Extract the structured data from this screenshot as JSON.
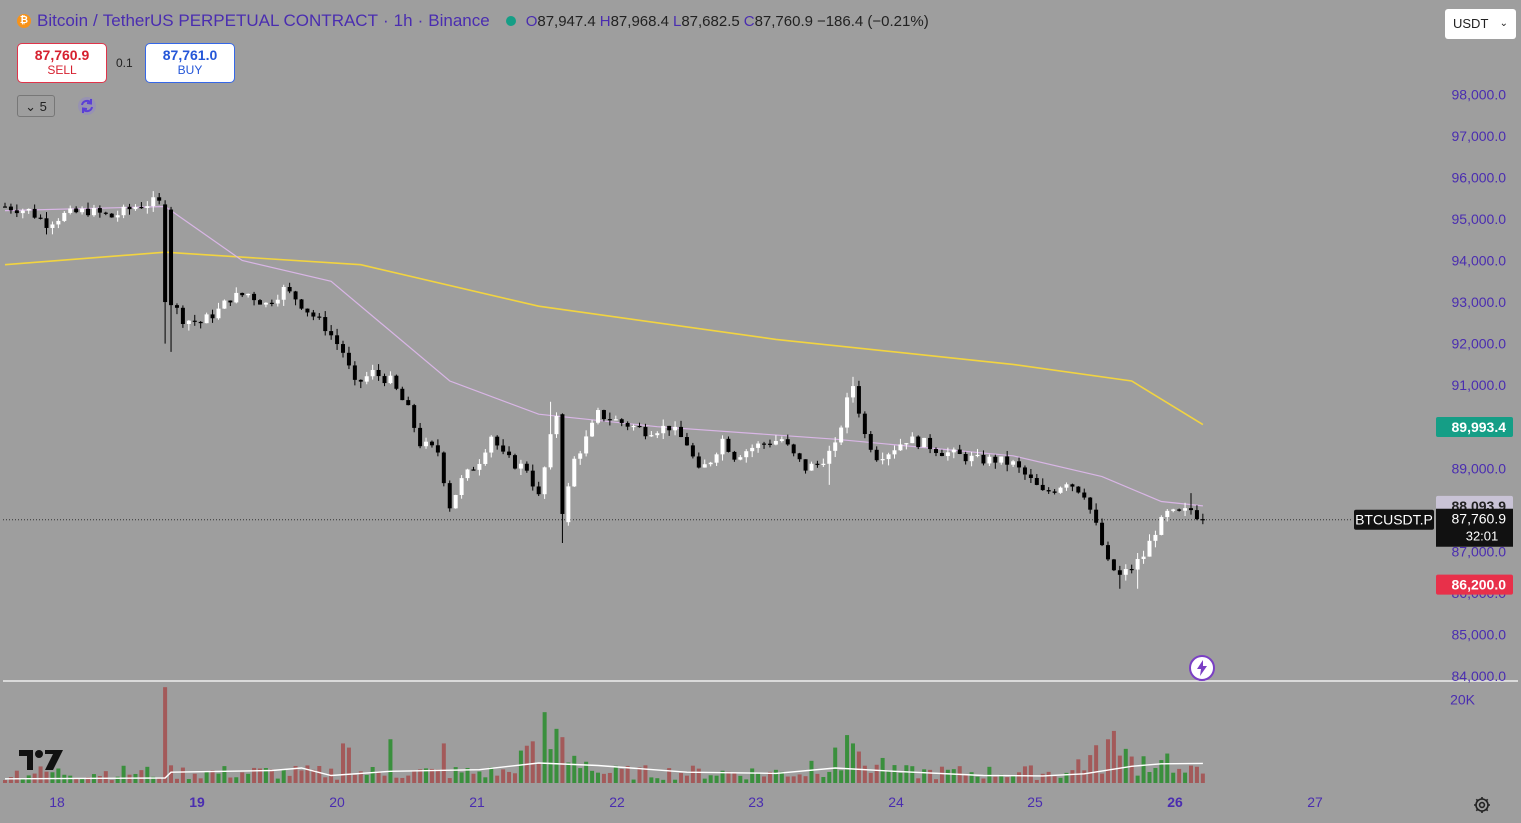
{
  "header": {
    "symbol_name": "Bitcoin",
    "pair_title": "TetherUS PERPETUAL CONTRACT",
    "interval": "1h",
    "exchange": "Binance",
    "coin_glyph": "₿",
    "ohlc": {
      "open_label": "O",
      "open": "87,947.4",
      "high_label": "H",
      "high": "87,968.4",
      "low_label": "L",
      "low": "87,682.5",
      "close_label": "C",
      "close": "87,760.9",
      "change": "−186.4 (−0.21%)"
    }
  },
  "trade": {
    "sell_price": "87,760.9",
    "sell_label": "SELL",
    "buy_price": "87,761.0",
    "buy_label": "BUY",
    "quantity": "0.1"
  },
  "controls": {
    "interval_count": "5",
    "currency": "USDT",
    "chevron": "⌄"
  },
  "price_badges": {
    "ticker": "BTCUSDT.P",
    "current_price": "87,760.9",
    "countdown": "32:01",
    "ma_fast_value": "88,093.9",
    "alert_high": "89,993.4",
    "alert_low": "86,200.0"
  },
  "colors": {
    "background": "#9e9e9e",
    "up_candle": "#ffffff",
    "down_candle": "#000000",
    "ma_slow": "#f2d440",
    "ma_fast": "#d9b6e6",
    "volume_up": "#3a8f3d",
    "volume_down": "#a35a5a",
    "alert_high": "#159e86",
    "alert_low": "#e8304a",
    "axis_text": "#4a2db0"
  },
  "icons": [
    "bitcoin-icon",
    "chevron-down-icon",
    "refresh-icon",
    "gear-icon",
    "tradingview-logo",
    "flash-icon",
    "live-status-icon"
  ],
  "chart_data": {
    "type": "candlestick",
    "interval": "1h",
    "x_tick_labels": [
      "18",
      "19",
      "20",
      "21",
      "22",
      "23",
      "24",
      "25",
      "26",
      "27"
    ],
    "bold_x_ticks": [
      "19",
      "26"
    ],
    "y_tick_labels": [
      "98,000.0",
      "97,000.0",
      "96,000.0",
      "95,000.0",
      "94,000.0",
      "93,000.0",
      "92,000.0",
      "91,000.0",
      "89,000.0",
      "88,000.0",
      "87,000.0",
      "86,000.0",
      "85,000.0",
      "84,000.0"
    ],
    "ylim": [
      83800,
      98500
    ],
    "price_path": [
      [
        0,
        95300
      ],
      [
        4,
        95200
      ],
      [
        7,
        94900
      ],
      [
        10,
        95100
      ],
      [
        14,
        95200
      ],
      [
        18,
        95050
      ],
      [
        22,
        95300
      ],
      [
        25,
        95400
      ],
      [
        27,
        95350
      ],
      [
        28,
        93000
      ],
      [
        30,
        92600
      ],
      [
        33,
        92500
      ],
      [
        36,
        92800
      ],
      [
        38,
        93100
      ],
      [
        41,
        93200
      ],
      [
        44,
        92950
      ],
      [
        47,
        93300
      ],
      [
        49,
        93100
      ],
      [
        51,
        92800
      ],
      [
        54,
        92400
      ],
      [
        57,
        91800
      ],
      [
        59,
        91000
      ],
      [
        62,
        91300
      ],
      [
        65,
        91100
      ],
      [
        68,
        90400
      ],
      [
        70,
        89600
      ],
      [
        73,
        89400
      ],
      [
        75,
        88100
      ],
      [
        77,
        88700
      ],
      [
        80,
        89200
      ],
      [
        82,
        89800
      ],
      [
        84,
        89300
      ],
      [
        86,
        89100
      ],
      [
        88,
        89000
      ],
      [
        90,
        88300
      ],
      [
        92,
        89700
      ],
      [
        93,
        90300
      ],
      [
        94,
        87800
      ],
      [
        95,
        88500
      ],
      [
        96,
        89200
      ],
      [
        98,
        89700
      ],
      [
        100,
        90300
      ],
      [
        104,
        90100
      ],
      [
        108,
        89900
      ],
      [
        112,
        90000
      ],
      [
        115,
        89600
      ],
      [
        117,
        88900
      ],
      [
        119,
        89200
      ],
      [
        121,
        89700
      ],
      [
        123,
        89300
      ],
      [
        126,
        89500
      ],
      [
        128,
        89600
      ],
      [
        131,
        89700
      ],
      [
        133,
        89300
      ],
      [
        135,
        89000
      ],
      [
        137,
        89100
      ],
      [
        140,
        89500
      ],
      [
        142,
        90600
      ],
      [
        143,
        91000
      ],
      [
        145,
        89800
      ],
      [
        147,
        89300
      ],
      [
        149,
        89400
      ],
      [
        152,
        89700
      ],
      [
        155,
        89600
      ],
      [
        158,
        89400
      ],
      [
        161,
        89300
      ],
      [
        164,
        89200
      ],
      [
        167,
        89200
      ],
      [
        170,
        89100
      ],
      [
        173,
        88700
      ],
      [
        175,
        88400
      ],
      [
        177,
        88500
      ],
      [
        179,
        88700
      ],
      [
        182,
        88400
      ],
      [
        184,
        87600
      ],
      [
        186,
        86700
      ],
      [
        188,
        86400
      ],
      [
        190,
        86600
      ],
      [
        192,
        86900
      ],
      [
        194,
        87500
      ],
      [
        196,
        87900
      ],
      [
        198,
        87900
      ],
      [
        200,
        88000
      ],
      [
        202,
        87760.9
      ]
    ],
    "series": [
      {
        "name": "",
        "type": "ma",
        "color": "#f2d440",
        "points": [
          [
            0,
            93900
          ],
          [
            27,
            94200
          ],
          [
            60,
            93900
          ],
          [
            90,
            92900
          ],
          [
            130,
            92100
          ],
          [
            170,
            91500
          ],
          [
            190,
            91100
          ],
          [
            202,
            90050
          ]
        ]
      },
      {
        "name": "",
        "type": "ma",
        "color": "#d9b6e6",
        "points": [
          [
            0,
            95200
          ],
          [
            27,
            95300
          ],
          [
            40,
            94000
          ],
          [
            55,
            93500
          ],
          [
            75,
            91100
          ],
          [
            90,
            90300
          ],
          [
            110,
            90000
          ],
          [
            140,
            89700
          ],
          [
            170,
            89300
          ],
          [
            185,
            88800
          ],
          [
            195,
            88200
          ],
          [
            202,
            88094
          ]
        ]
      }
    ],
    "volume": {
      "y_tick_labels": [
        "20K"
      ],
      "ylim": [
        0,
        24000
      ],
      "spikes": [
        [
          27,
          23000
        ],
        [
          57,
          9500
        ],
        [
          58,
          8500
        ],
        [
          65,
          10500
        ],
        [
          74,
          9500
        ],
        [
          89,
          10000
        ],
        [
          91,
          17000
        ],
        [
          93,
          13000
        ],
        [
          94,
          11000
        ],
        [
          140,
          8500
        ],
        [
          142,
          11500
        ],
        [
          143,
          9500
        ],
        [
          186,
          10500
        ],
        [
          187,
          12500
        ],
        [
          195,
          5500
        ]
      ],
      "baseline_volume": 1400
    },
    "price_label_last": "87,760.9",
    "current_price_line": 87760.9
  }
}
